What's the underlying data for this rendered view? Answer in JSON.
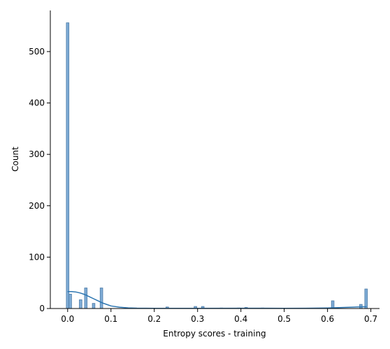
{
  "chart_data": {
    "type": "bar",
    "subtype": "histogram with KDE line",
    "xlabel": "Entropy scores - training",
    "ylabel": "Count",
    "xlim": [
      -0.04,
      0.72
    ],
    "ylim": [
      0,
      580
    ],
    "x_ticks": [
      "0.0",
      "0.1",
      "0.2",
      "0.3",
      "0.4",
      "0.5",
      "0.6",
      "0.7"
    ],
    "x_tick_values": [
      0.0,
      0.1,
      0.2,
      0.3,
      0.4,
      0.5,
      0.6,
      0.7
    ],
    "y_ticks": [
      "0",
      "100",
      "200",
      "300",
      "400",
      "500"
    ],
    "y_tick_values": [
      0,
      100,
      200,
      300,
      400,
      500
    ],
    "grid": false,
    "bin_width": 0.006,
    "bars": [
      {
        "x": 0.0,
        "count": 556
      },
      {
        "x": 0.006,
        "count": 28
      },
      {
        "x": 0.03,
        "count": 17
      },
      {
        "x": 0.042,
        "count": 40
      },
      {
        "x": 0.06,
        "count": 10
      },
      {
        "x": 0.078,
        "count": 40
      },
      {
        "x": 0.23,
        "count": 3
      },
      {
        "x": 0.295,
        "count": 4
      },
      {
        "x": 0.312,
        "count": 4
      },
      {
        "x": 0.355,
        "count": 1
      },
      {
        "x": 0.395,
        "count": 1
      },
      {
        "x": 0.412,
        "count": 2
      },
      {
        "x": 0.45,
        "count": 1
      },
      {
        "x": 0.612,
        "count": 15
      },
      {
        "x": 0.677,
        "count": 8
      },
      {
        "x": 0.689,
        "count": 38
      }
    ],
    "kde": {
      "x": [
        0.0,
        0.01,
        0.02,
        0.03,
        0.04,
        0.05,
        0.06,
        0.07,
        0.08,
        0.09,
        0.1,
        0.12,
        0.14,
        0.16,
        0.2,
        0.3,
        0.4,
        0.5,
        0.55,
        0.6,
        0.63,
        0.66,
        0.69
      ],
      "y": [
        33,
        33,
        32,
        30,
        27,
        23,
        19,
        15,
        11,
        8,
        5,
        2.5,
        1.2,
        0.6,
        0.3,
        0.4,
        0.5,
        0.4,
        0.5,
        1.0,
        1.8,
        2.8,
        3.5
      ]
    },
    "bar_fill": "#7facd6",
    "bar_stroke": "#4a79a5",
    "kde_color": "#2a74b0"
  }
}
